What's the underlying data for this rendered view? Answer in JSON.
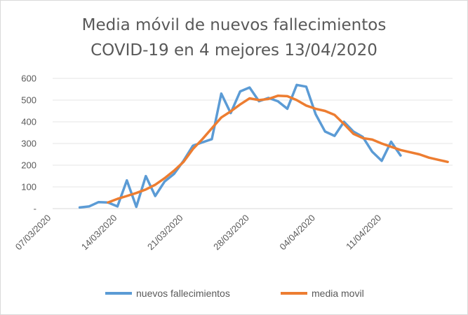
{
  "chart_data": {
    "type": "line",
    "title_lines": [
      "Media móvil de nuevos fallecimientos",
      "COVID-19 en 4 mejores 13/04/2020"
    ],
    "x_dates": [
      "10/03",
      "11/03",
      "12/03",
      "13/03",
      "14/03",
      "15/03",
      "16/03",
      "17/03",
      "18/03",
      "19/03",
      "20/03",
      "21/03",
      "22/03",
      "23/03",
      "24/03",
      "25/03",
      "26/03",
      "27/03",
      "28/03",
      "29/03",
      "30/03",
      "31/03",
      "01/04",
      "02/04",
      "03/04",
      "04/04",
      "05/04",
      "06/04",
      "07/04",
      "08/04",
      "09/04",
      "10/04",
      "11/04",
      "12/04",
      "13/04",
      "14/04",
      "15/04",
      "16/04",
      "17/04",
      "18/04"
    ],
    "x_tick_labels": [
      "07/03/2020",
      "14/03/2020",
      "21/03/2020",
      "28/03/2020",
      "04/04/2020",
      "11/04/2020"
    ],
    "y_tick_labels": [
      "-",
      "100",
      "200",
      "300",
      "400",
      "500",
      "600"
    ],
    "ylim": [
      0,
      600
    ],
    "series": [
      {
        "name": "nuevos fallecimientos",
        "color": "#5b9bd5",
        "values": [
          5,
          10,
          30,
          28,
          10,
          130,
          8,
          150,
          58,
          125,
          160,
          220,
          290,
          305,
          320,
          530,
          440,
          540,
          558,
          495,
          510,
          495,
          460,
          570,
          562,
          435,
          355,
          335,
          400,
          355,
          330,
          262,
          220,
          308,
          245,
          null,
          null,
          null,
          null,
          null
        ]
      },
      {
        "name": "media movil",
        "color": "#ed7d31",
        "values": [
          null,
          null,
          null,
          28,
          45,
          58,
          72,
          88,
          110,
          140,
          175,
          215,
          275,
          320,
          370,
          420,
          448,
          480,
          508,
          500,
          505,
          520,
          518,
          500,
          475,
          460,
          450,
          432,
          390,
          345,
          325,
          318,
          300,
          285,
          270,
          260,
          250,
          235,
          225,
          215
        ]
      }
    ]
  }
}
